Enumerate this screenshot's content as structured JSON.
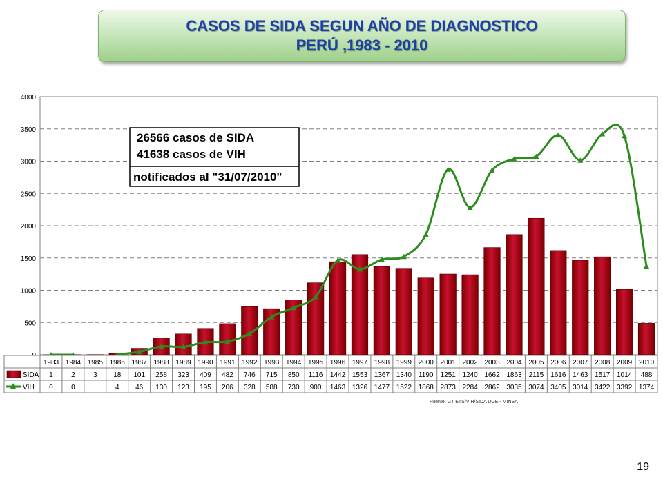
{
  "title": {
    "line1": "CASOS DE SIDA SEGUN AÑO DE DIAGNOSTICO",
    "line2": "PERÚ ,1983 - 2010"
  },
  "page_number": "19",
  "source_note": "Fuente: GT ETS/VIH/SIDA DGE - MINSA",
  "annotation": {
    "line1": "26566 casos de SIDA",
    "line2": "41638 casos de VIH",
    "line3": "notificados al \"31/07/2010\""
  },
  "colors": {
    "bar": "#c8102e",
    "bar_dark": "#7a0000",
    "line": "#2e8b1f",
    "title_text": "#1f3fa8"
  },
  "chart_data": {
    "type": "bar",
    "categories": [
      "1983",
      "1984",
      "1985",
      "1986",
      "1987",
      "1988",
      "1989",
      "1990",
      "1991",
      "1992",
      "1993",
      "1994",
      "1995",
      "1996",
      "1997",
      "1998",
      "1999",
      "2000",
      "2001",
      "2002",
      "2003",
      "2004",
      "2005",
      "2006",
      "2007",
      "2008",
      "2009",
      "2010"
    ],
    "series": [
      {
        "name": "SIDA",
        "type": "bar",
        "values": [
          1,
          2,
          3,
          18,
          101,
          258,
          323,
          409,
          482,
          746,
          715,
          850,
          1116,
          1442,
          1553,
          1367,
          1340,
          1190,
          1251,
          1240,
          1662,
          1863,
          2115,
          1616,
          1463,
          1517,
          1014,
          488
        ]
      },
      {
        "name": "VIH",
        "type": "line",
        "values": [
          0,
          0,
          null,
          4,
          46,
          130,
          123,
          195,
          206,
          328,
          588,
          730,
          900,
          1463,
          1326,
          1477,
          1522,
          1868,
          2873,
          2284,
          2862,
          3035,
          3074,
          3405,
          3014,
          3422,
          3392,
          1374
        ]
      }
    ],
    "ylim": [
      0,
      4000
    ],
    "yticks": [
      0,
      500,
      1000,
      1500,
      2000,
      2500,
      3000,
      3500,
      4000
    ],
    "grid": "dashed horizontal",
    "table_below": true
  }
}
